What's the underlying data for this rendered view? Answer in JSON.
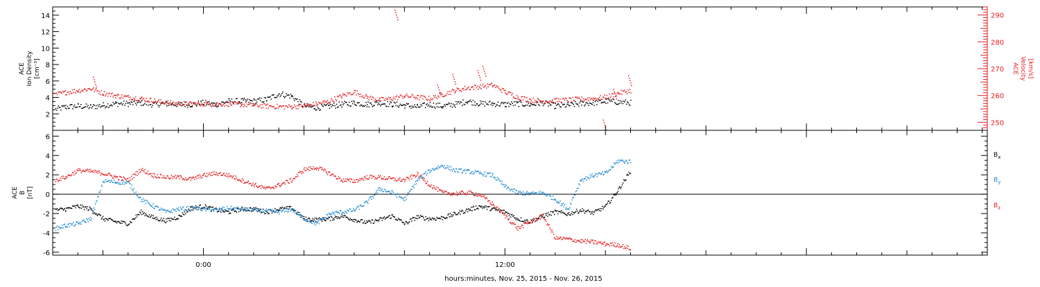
{
  "colors": {
    "black": "#000000",
    "red": "#e41a1c",
    "blue": "#1f88d2",
    "axis": "#000000"
  },
  "chart_data": [
    {
      "type": "scatter",
      "panel": "top",
      "ylabel_lines": [
        "ACE",
        "Ion Density",
        "[cm⁻³]"
      ],
      "y2label_lines": [
        "ACE",
        "Velocity",
        "[km/s]"
      ],
      "ylim": [
        0,
        15
      ],
      "y_ticks": [
        "2",
        "4",
        "6",
        "8",
        "10",
        "12",
        "14"
      ],
      "y2lim": [
        247,
        293
      ],
      "y2_ticks": [
        "250",
        "260",
        "270",
        "280",
        "290"
      ],
      "xlim_hours": [
        -6,
        31.2
      ],
      "series": [
        {
          "color_key": "black",
          "points": [
            [
              -5.9,
              2.6
            ],
            [
              -5.5,
              2.9
            ],
            [
              -5.0,
              3.0
            ],
            [
              -4.5,
              2.9
            ],
            [
              -4.0,
              3.1
            ],
            [
              -3.5,
              3.3
            ],
            [
              -3.0,
              3.3
            ],
            [
              -2.5,
              3.4
            ],
            [
              -2.0,
              3.2
            ],
            [
              -1.5,
              3.3
            ],
            [
              -1.0,
              3.2
            ],
            [
              -0.5,
              3.2
            ],
            [
              0.0,
              3.4
            ],
            [
              0.5,
              3.2
            ],
            [
              1.0,
              3.6
            ],
            [
              1.5,
              3.6
            ],
            [
              2.0,
              3.6
            ],
            [
              2.5,
              3.8
            ],
            [
              3.0,
              4.5
            ],
            [
              3.5,
              4.2
            ],
            [
              4.0,
              3.0
            ],
            [
              4.5,
              2.8
            ],
            [
              5.0,
              3.0
            ],
            [
              5.5,
              3.2
            ],
            [
              6.0,
              3.4
            ],
            [
              6.5,
              3.2
            ],
            [
              7.0,
              3.4
            ],
            [
              7.5,
              3.2
            ],
            [
              8.0,
              3.1
            ],
            [
              8.5,
              2.9
            ],
            [
              9.0,
              3.2
            ],
            [
              9.5,
              3.0
            ],
            [
              10.0,
              3.2
            ],
            [
              10.5,
              3.6
            ],
            [
              11.0,
              3.3
            ],
            [
              11.5,
              3.3
            ],
            [
              12.0,
              3.2
            ],
            [
              12.5,
              3.3
            ],
            [
              13.0,
              3.2
            ],
            [
              13.5,
              3.4
            ],
            [
              14.0,
              3.0
            ],
            [
              14.5,
              3.1
            ],
            [
              15.0,
              3.3
            ],
            [
              15.5,
              3.4
            ],
            [
              16.0,
              3.6
            ],
            [
              16.5,
              3.5
            ],
            [
              17.0,
              3.4
            ]
          ]
        },
        {
          "color_key": "red",
          "axis": "right",
          "points": [
            [
              -5.9,
              260.5
            ],
            [
              -5.5,
              261.3
            ],
            [
              -5.0,
              262.0
            ],
            [
              -4.5,
              262.7
            ],
            [
              -4.0,
              261.0
            ],
            [
              -3.5,
              260.1
            ],
            [
              -3.0,
              259.5
            ],
            [
              -2.5,
              259.0
            ],
            [
              -2.0,
              258.2
            ],
            [
              -1.5,
              257.5
            ],
            [
              -1.0,
              257.2
            ],
            [
              -0.5,
              257.0
            ],
            [
              0.0,
              257.0
            ],
            [
              0.5,
              256.9
            ],
            [
              1.0,
              257.0
            ],
            [
              1.5,
              256.8
            ],
            [
              2.0,
              256.5
            ],
            [
              2.5,
              256.2
            ],
            [
              3.0,
              256.0
            ],
            [
              3.5,
              256.0
            ],
            [
              4.0,
              256.3
            ],
            [
              4.5,
              257.0
            ],
            [
              5.0,
              258.0
            ],
            [
              5.5,
              260.0
            ],
            [
              6.0,
              261.5
            ],
            [
              6.5,
              259.5
            ],
            [
              7.0,
              258.5
            ],
            [
              7.5,
              259.0
            ],
            [
              8.0,
              260.0
            ],
            [
              8.5,
              259.5
            ],
            [
              9.0,
              259.0
            ],
            [
              9.5,
              260.5
            ],
            [
              10.0,
              262.0
            ],
            [
              10.5,
              263.0
            ],
            [
              11.0,
              263.5
            ],
            [
              11.5,
              264.0
            ],
            [
              12.0,
              261.5
            ],
            [
              12.5,
              259.5
            ],
            [
              13.0,
              258.5
            ],
            [
              13.5,
              258.0
            ],
            [
              14.0,
              258.3
            ],
            [
              14.5,
              258.5
            ],
            [
              15.0,
              258.8
            ],
            [
              15.5,
              259.0
            ],
            [
              16.0,
              259.5
            ],
            [
              16.5,
              261.0
            ],
            [
              17.0,
              262.0
            ]
          ]
        }
      ],
      "spikes_right": [
        [
          -4.4,
          267.0
        ],
        [
          7.6,
          292.0
        ],
        [
          9.3,
          264.0
        ],
        [
          9.9,
          268.0
        ],
        [
          10.9,
          269.5
        ],
        [
          11.1,
          271.0
        ],
        [
          15.9,
          251.0
        ],
        [
          16.3,
          262.5
        ],
        [
          16.9,
          267.5
        ]
      ]
    },
    {
      "type": "scatter",
      "panel": "bottom",
      "ylabel_lines": [
        "ACE",
        "B",
        "[nT]"
      ],
      "ylim": [
        -6.3,
        6.6
      ],
      "y_ticks": [
        "-6",
        "-4",
        "-2",
        "0",
        "2",
        "4",
        "6"
      ],
      "series": [
        {
          "name": "B",
          "subscript": "x",
          "color_key": "black",
          "points": [
            [
              -5.9,
              -1.6
            ],
            [
              -5.5,
              -1.5
            ],
            [
              -5.0,
              -1.2
            ],
            [
              -4.5,
              -1.5
            ],
            [
              -4.0,
              -2.5
            ],
            [
              -3.5,
              -2.8
            ],
            [
              -3.0,
              -3.0
            ],
            [
              -2.5,
              -1.8
            ],
            [
              -2.0,
              -2.4
            ],
            [
              -1.5,
              -2.7
            ],
            [
              -1.0,
              -2.3
            ],
            [
              -0.5,
              -1.4
            ],
            [
              0.0,
              -1.2
            ],
            [
              0.5,
              -1.6
            ],
            [
              1.0,
              -1.8
            ],
            [
              1.5,
              -1.5
            ],
            [
              2.0,
              -1.5
            ],
            [
              2.5,
              -1.8
            ],
            [
              3.0,
              -1.5
            ],
            [
              3.5,
              -1.4
            ],
            [
              4.0,
              -2.5
            ],
            [
              4.5,
              -2.6
            ],
            [
              5.0,
              -2.5
            ],
            [
              5.5,
              -2.2
            ],
            [
              6.0,
              -2.6
            ],
            [
              6.5,
              -2.9
            ],
            [
              7.0,
              -2.6
            ],
            [
              7.5,
              -2.2
            ],
            [
              8.0,
              -3.0
            ],
            [
              8.5,
              -2.3
            ],
            [
              9.0,
              -2.5
            ],
            [
              9.5,
              -2.4
            ],
            [
              10.0,
              -2.0
            ],
            [
              10.5,
              -1.6
            ],
            [
              11.0,
              -1.2
            ],
            [
              11.5,
              -1.5
            ],
            [
              12.0,
              -1.8
            ],
            [
              12.5,
              -2.5
            ],
            [
              13.0,
              -2.8
            ],
            [
              13.5,
              -2.2
            ],
            [
              14.0,
              -1.8
            ],
            [
              14.5,
              -2.0
            ],
            [
              15.0,
              -1.6
            ],
            [
              15.5,
              -1.9
            ],
            [
              16.0,
              -1.2
            ],
            [
              16.5,
              0.5
            ],
            [
              17.0,
              2.5
            ]
          ]
        },
        {
          "name": "B",
          "subscript": "y",
          "color_key": "blue",
          "points": [
            [
              -5.9,
              -3.5
            ],
            [
              -5.5,
              -3.2
            ],
            [
              -5.0,
              -3.0
            ],
            [
              -4.5,
              -2.5
            ],
            [
              -4.0,
              1.4
            ],
            [
              -3.5,
              1.3
            ],
            [
              -3.0,
              1.2
            ],
            [
              -2.5,
              -0.5
            ],
            [
              -2.0,
              -1.2
            ],
            [
              -1.5,
              -1.8
            ],
            [
              -1.0,
              -1.5
            ],
            [
              -0.5,
              -1.4
            ],
            [
              0.0,
              -1.5
            ],
            [
              0.5,
              -1.6
            ],
            [
              1.0,
              -1.4
            ],
            [
              1.5,
              -1.5
            ],
            [
              2.0,
              -1.6
            ],
            [
              2.5,
              -1.7
            ],
            [
              3.0,
              -1.8
            ],
            [
              3.5,
              -1.5
            ],
            [
              4.0,
              -2.5
            ],
            [
              4.5,
              -3.0
            ],
            [
              5.0,
              -2.0
            ],
            [
              5.5,
              -1.8
            ],
            [
              6.0,
              -1.6
            ],
            [
              6.5,
              -0.8
            ],
            [
              7.0,
              0.6
            ],
            [
              7.5,
              0.2
            ],
            [
              8.0,
              -0.5
            ],
            [
              8.5,
              1.5
            ],
            [
              9.0,
              2.5
            ],
            [
              9.5,
              3.0
            ],
            [
              10.0,
              2.5
            ],
            [
              10.5,
              2.4
            ],
            [
              11.0,
              2.2
            ],
            [
              11.5,
              2.0
            ],
            [
              12.0,
              0.8
            ],
            [
              12.5,
              0.2
            ],
            [
              13.0,
              0.1
            ],
            [
              13.5,
              0.2
            ],
            [
              14.0,
              -0.5
            ],
            [
              14.5,
              -1.5
            ],
            [
              15.0,
              1.5
            ],
            [
              15.5,
              2.0
            ],
            [
              16.0,
              2.2
            ],
            [
              16.5,
              3.5
            ],
            [
              17.0,
              3.4
            ]
          ]
        },
        {
          "name": "B",
          "subscript": "z",
          "color_key": "red",
          "points": [
            [
              -5.9,
              1.5
            ],
            [
              -5.5,
              1.8
            ],
            [
              -5.0,
              2.5
            ],
            [
              -4.5,
              2.4
            ],
            [
              -4.0,
              2.2
            ],
            [
              -3.5,
              1.8
            ],
            [
              -3.0,
              1.5
            ],
            [
              -2.5,
              2.6
            ],
            [
              -2.0,
              2.0
            ],
            [
              -1.5,
              1.8
            ],
            [
              -1.0,
              1.8
            ],
            [
              -0.5,
              1.6
            ],
            [
              0.0,
              2.0
            ],
            [
              0.5,
              2.2
            ],
            [
              1.0,
              2.0
            ],
            [
              1.5,
              1.5
            ],
            [
              2.0,
              1.0
            ],
            [
              2.5,
              0.6
            ],
            [
              3.0,
              1.0
            ],
            [
              3.5,
              1.5
            ],
            [
              4.0,
              2.6
            ],
            [
              4.5,
              2.8
            ],
            [
              5.0,
              2.2
            ],
            [
              5.5,
              1.5
            ],
            [
              6.0,
              1.4
            ],
            [
              6.5,
              1.8
            ],
            [
              7.0,
              1.8
            ],
            [
              7.5,
              1.6
            ],
            [
              8.0,
              1.5
            ],
            [
              8.5,
              2.1
            ],
            [
              9.0,
              1.0
            ],
            [
              9.5,
              0.2
            ],
            [
              10.0,
              0.1
            ],
            [
              10.5,
              0.2
            ],
            [
              11.0,
              0.0
            ],
            [
              11.5,
              -1.0
            ],
            [
              12.0,
              -2.2
            ],
            [
              12.5,
              -3.5
            ],
            [
              13.0,
              -2.8
            ],
            [
              13.5,
              -2.2
            ],
            [
              14.0,
              -4.5
            ],
            [
              14.5,
              -4.6
            ],
            [
              15.0,
              -4.8
            ],
            [
              15.5,
              -4.9
            ],
            [
              16.0,
              -5.1
            ],
            [
              16.5,
              -5.2
            ],
            [
              17.0,
              -5.6
            ]
          ]
        }
      ]
    }
  ],
  "x_tick_labels": [
    {
      "hour": 0,
      "label": "0:00"
    },
    {
      "hour": 12,
      "label": "12:00"
    }
  ],
  "xlabel": "hours:minutes, Nov. 25, 2015 - Nov. 26, 2015"
}
